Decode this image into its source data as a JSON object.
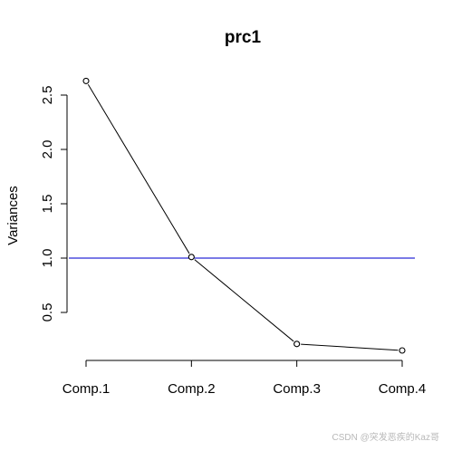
{
  "chart_data": {
    "type": "line",
    "title": "prc1",
    "xlabel": "",
    "ylabel": "Variances",
    "categories": [
      "Comp.1",
      "Comp.2",
      "Comp.3",
      "Comp.4"
    ],
    "values": [
      2.63,
      1.01,
      0.21,
      0.15
    ],
    "ylim": [
      0.05,
      2.7
    ],
    "yticks": [
      0.5,
      1.0,
      1.5,
      2.0,
      2.5
    ],
    "ytick_labels": [
      "0.5",
      "1.0",
      "1.5",
      "2.0",
      "2.5"
    ],
    "reference_line": {
      "y": 1.0,
      "color": "#2a2ad8"
    },
    "line_color": "#000000",
    "marker": "open-circle",
    "grid": false
  },
  "watermark": "CSDN @突发恶疾的Kaz哥"
}
